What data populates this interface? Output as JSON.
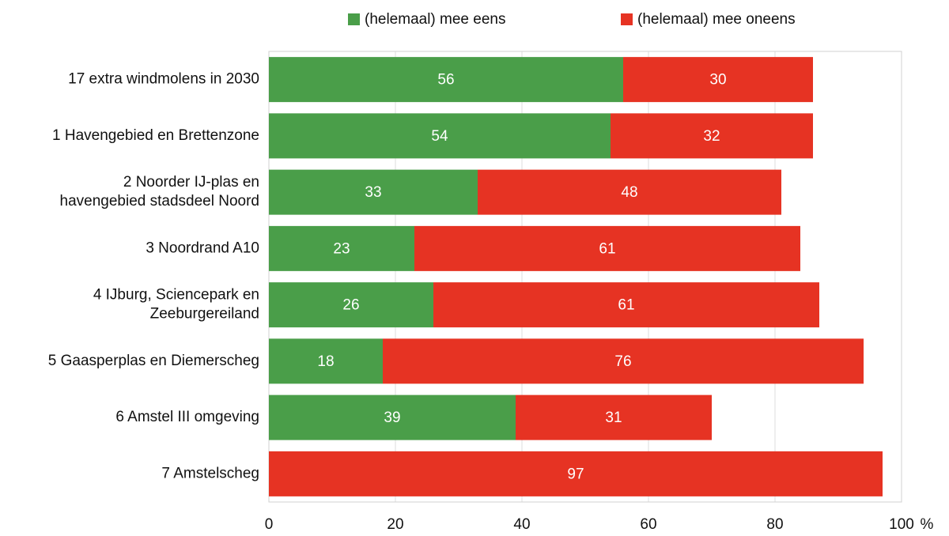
{
  "chart_data": {
    "type": "stacked_barh",
    "categories": [
      "17 extra windmolens in 2030",
      "1 Havengebied en Brettenzone",
      "2 Noorder IJ-plas en\nhavengebied stadsdeel Noord",
      "3 Noordrand A10",
      "4 IJburg, Sciencepark en\nZeeburgereiland",
      "5 Gaasperplas en Diemerscheg",
      "6 Amstel III omgeving",
      "7 Amstelscheg"
    ],
    "series": [
      {
        "name": "(helemaal) mee eens",
        "color": "#4a9e49",
        "values": [
          56,
          54,
          33,
          23,
          26,
          18,
          39,
          0
        ]
      },
      {
        "name": "(helemaal) mee oneens",
        "color": "#e63323",
        "values": [
          30,
          32,
          48,
          61,
          61,
          76,
          31,
          97
        ]
      }
    ],
    "xlim": [
      0,
      100
    ],
    "xticks": [
      0,
      20,
      40,
      60,
      80,
      100
    ],
    "x_label": "%",
    "grid": true,
    "legend": "top"
  }
}
